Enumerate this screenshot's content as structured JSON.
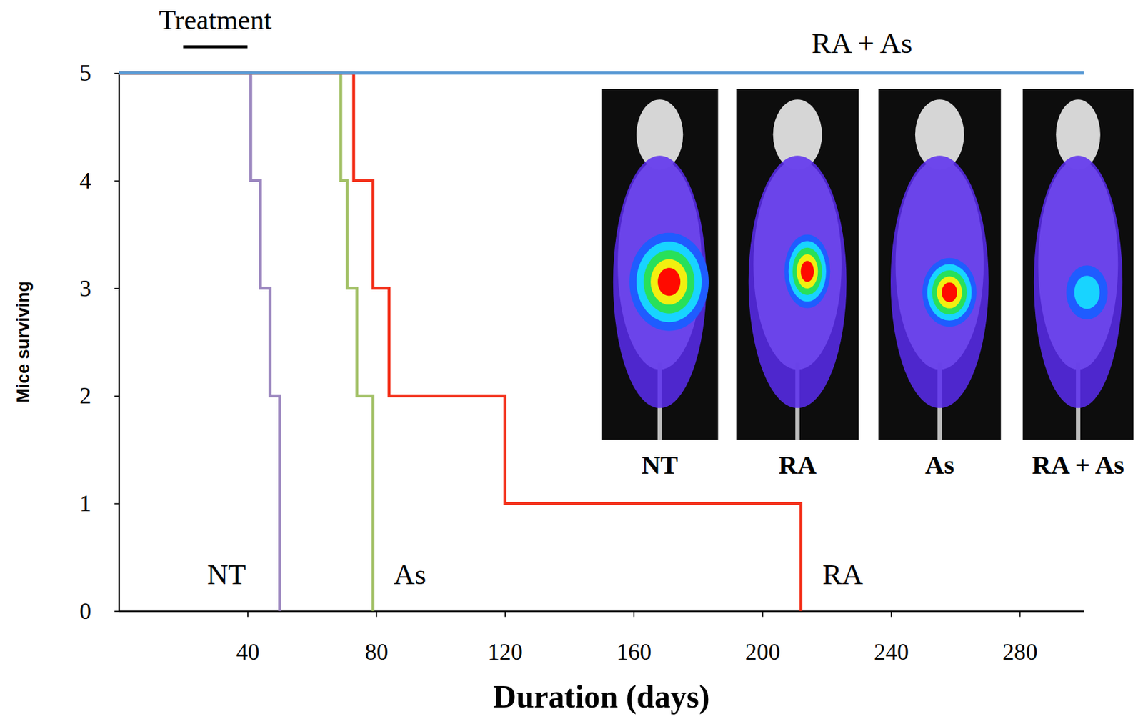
{
  "chart_data": {
    "type": "line",
    "line_style": "step",
    "xlabel": "Duration (days)",
    "ylabel": "Mice surviving",
    "xlim": [
      0,
      300
    ],
    "xticks": [
      40,
      80,
      120,
      160,
      200,
      240,
      280
    ],
    "ylim": [
      0,
      5
    ],
    "yticks": [
      0,
      1,
      2,
      3,
      4,
      5
    ],
    "grid": false,
    "series": [
      {
        "name": "NT",
        "color": "#9b86bf",
        "x": [
          0,
          41,
          44,
          47,
          50
        ],
        "values": [
          5,
          4,
          3,
          2,
          0
        ]
      },
      {
        "name": "As",
        "color": "#a3c167",
        "x": [
          0,
          69,
          71,
          74,
          79
        ],
        "values": [
          5,
          4,
          3,
          2,
          0
        ]
      },
      {
        "name": "RA",
        "color": "#f3301a",
        "x": [
          0,
          73,
          79,
          84,
          120,
          212
        ],
        "values": [
          5,
          4,
          3,
          2,
          1,
          0
        ]
      },
      {
        "name": "RA + As",
        "color": "#5b9bd5",
        "x": [
          0,
          300
        ],
        "values": [
          5,
          5
        ]
      }
    ],
    "annotations": [
      {
        "text": "Treatment",
        "x": [
          20,
          40
        ]
      }
    ],
    "image_labels": [
      "NT",
      "RA",
      "As",
      "RA + As"
    ]
  }
}
